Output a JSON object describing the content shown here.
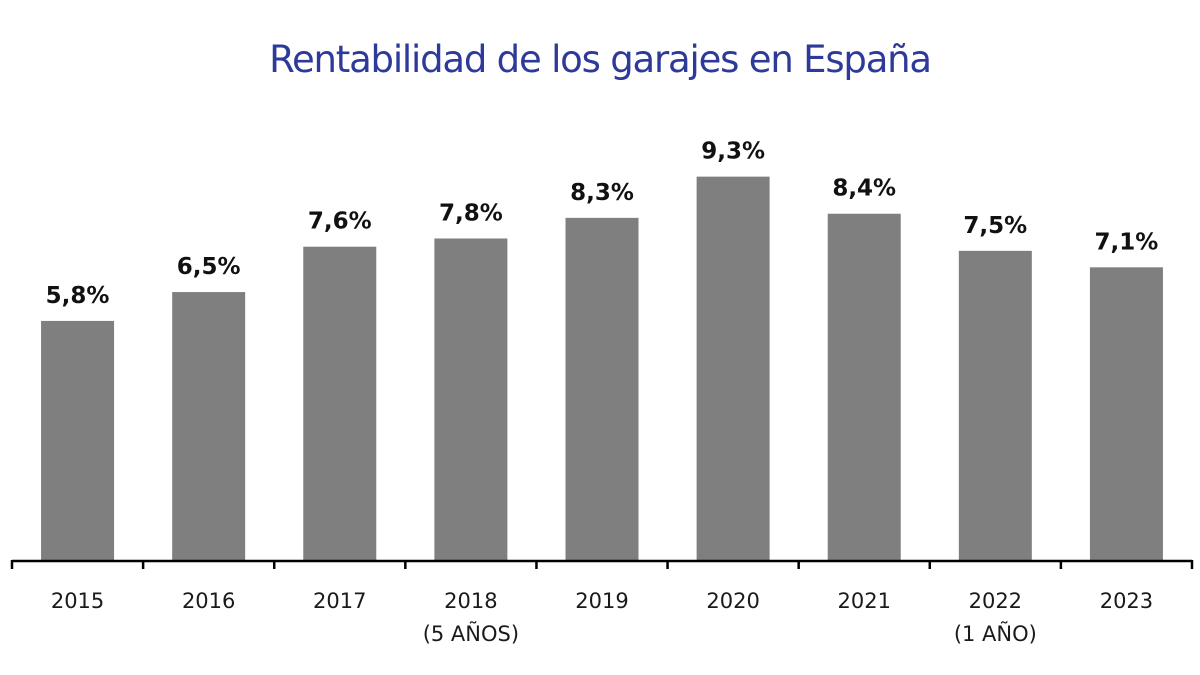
{
  "chart_data": {
    "type": "bar",
    "title": "Rentabilidad de los garajes en España",
    "xlabel": "",
    "ylabel": "",
    "categories": [
      "2015",
      "2016",
      "2017",
      "2018",
      "2019",
      "2020",
      "2021",
      "2022",
      "2023"
    ],
    "category_sublabels": [
      "",
      "",
      "",
      "(5 AÑOS)",
      "",
      "",
      "",
      "(1 AÑO)",
      ""
    ],
    "values": [
      5.8,
      6.5,
      7.6,
      7.8,
      8.3,
      9.3,
      8.4,
      7.5,
      7.1
    ],
    "data_labels": [
      "5,8%",
      "6,5%",
      "7,6%",
      "7,8%",
      "8,3%",
      "9,3%",
      "8,4%",
      "7,5%",
      "7,1%"
    ],
    "unit": "%",
    "ylim": [
      0,
      13.1
    ],
    "grid": false,
    "legend": "none",
    "colors": {
      "bar": "#7f7f7f",
      "title": "#2e3a9a",
      "axis": "#000000",
      "label": "#111111"
    }
  }
}
